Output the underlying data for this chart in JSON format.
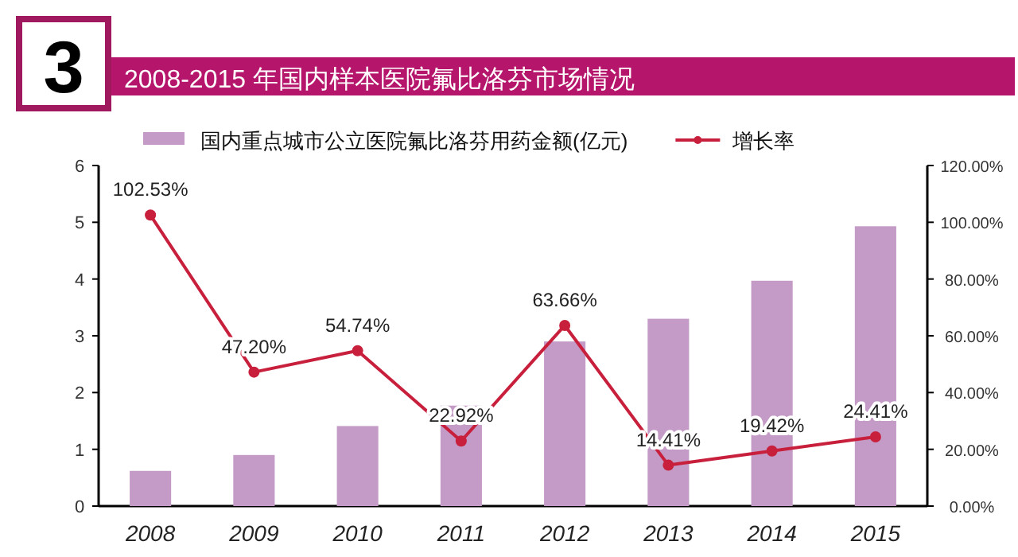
{
  "chart_data": {
    "type": "bar",
    "title": "2008-2015 年国内样本医院氟比洛芬市场情况",
    "annotations": [
      "3"
    ],
    "categories": [
      "2008",
      "2009",
      "2010",
      "2011",
      "2012",
      "2013",
      "2014",
      "2015"
    ],
    "series": [
      {
        "name": "国内重点城市公立医院氟比洛芬用药金额(亿元)",
        "color": "#c49ac6",
        "values": [
          0.62,
          0.9,
          1.41,
          1.77,
          2.9,
          3.3,
          3.97,
          4.93
        ]
      },
      {
        "name": "增长率",
        "type": "line",
        "axis": "y2",
        "color": "#c8203c",
        "marker": "circle",
        "value_labels": [
          "102.53%",
          "47.20%",
          "54.74%",
          "22.92%",
          "63.66%",
          "14.41%",
          "19.42%",
          "24.41%"
        ],
        "values": [
          102.53,
          47.2,
          54.74,
          22.92,
          63.66,
          14.41,
          19.42,
          24.41
        ]
      }
    ],
    "ylim": [
      0,
      6
    ],
    "yticks": [
      0,
      1,
      2,
      3,
      4,
      5,
      6
    ],
    "y2lim": [
      0,
      120
    ],
    "y2ticks": [
      {
        "value": 0,
        "label": "0.00%"
      },
      {
        "value": 20,
        "label": "20.00%"
      },
      {
        "value": 40,
        "label": "40.00%"
      },
      {
        "value": 60,
        "label": "60.00%"
      },
      {
        "value": 80,
        "label": "80.00%"
      },
      {
        "value": 100,
        "label": "100.00%"
      },
      {
        "value": 120,
        "label": "120.00%"
      }
    ],
    "legend": "top",
    "grid": false
  }
}
